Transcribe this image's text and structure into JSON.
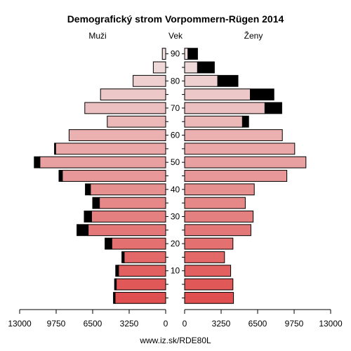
{
  "chart_data": {
    "type": "bar",
    "title": "Demografický strom Vorpommern-Rügen 2014",
    "left_label": "Muži",
    "center_label": "Vek",
    "right_label": "Ženy",
    "footer": "www.iz.sk/RDE80L",
    "x_ticks_left": [
      "13000",
      "9750",
      "6500",
      "3250",
      "0"
    ],
    "x_ticks_right": [
      "0",
      "3250",
      "6500",
      "9750",
      "13000"
    ],
    "x_tick_values": [
      13000,
      9750,
      6500,
      3250,
      0
    ],
    "xlim": [
      0,
      13000
    ],
    "age_ticks": [
      "90",
      "80",
      "70",
      "60",
      "50",
      "40",
      "30",
      "20",
      "10"
    ],
    "age_tick_values": [
      90,
      80,
      70,
      60,
      50,
      40,
      30,
      20,
      10
    ],
    "age_groups": [
      "0-4",
      "5-9",
      "10-14",
      "15-19",
      "20-24",
      "25-29",
      "30-34",
      "35-39",
      "40-44",
      "45-49",
      "50-54",
      "55-59",
      "60-64",
      "65-69",
      "70-74",
      "75-79",
      "80-84",
      "85-89",
      "90+"
    ],
    "age_group_start": [
      0,
      5,
      10,
      15,
      20,
      25,
      30,
      35,
      40,
      45,
      50,
      55,
      60,
      65,
      70,
      75,
      80,
      85,
      90
    ],
    "series": [
      {
        "name": "Muži",
        "values": [
          4500,
          4400,
          4200,
          3700,
          4800,
          6900,
          6600,
          5900,
          6700,
          9200,
          11200,
          9800,
          8600,
          5200,
          7200,
          5800,
          2900,
          1100,
          300
        ],
        "excess": [
          150,
          150,
          250,
          200,
          600,
          1000,
          650,
          600,
          450,
          300,
          500,
          100,
          0,
          0,
          0,
          0,
          0,
          0,
          0
        ]
      },
      {
        "name": "Ženy",
        "values": [
          4350,
          4300,
          4100,
          3550,
          4300,
          5900,
          6100,
          5400,
          6200,
          9100,
          10800,
          9800,
          8700,
          5150,
          7150,
          5850,
          2950,
          1150,
          300
        ],
        "excess": [
          0,
          0,
          0,
          0,
          0,
          0,
          0,
          0,
          0,
          0,
          0,
          0,
          0,
          550,
          1500,
          2100,
          1800,
          1500,
          850
        ]
      }
    ],
    "colors": {
      "excess": "#000000",
      "outline": "#000000",
      "gradient_young": "#e05050",
      "gradient_old": "#f0e0e0"
    },
    "grid": false
  }
}
